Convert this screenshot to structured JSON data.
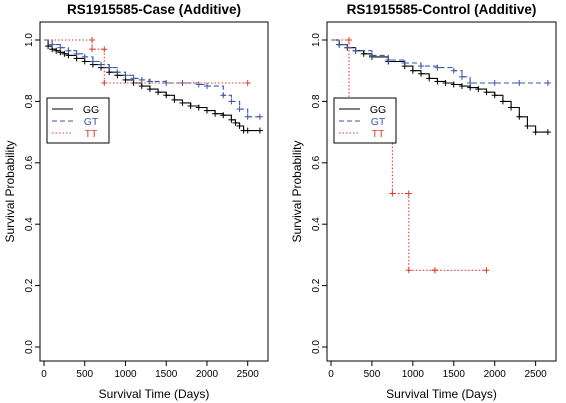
{
  "chart_data": [
    {
      "type": "line",
      "title": "RS1915585-Case (Additive)",
      "xlabel": "Survival Time (Days)",
      "ylabel": "Survival Probability",
      "xlim": [
        0,
        2700
      ],
      "ylim": [
        0,
        1.0
      ],
      "x_ticks": [
        "0",
        "500",
        "1000",
        "1500",
        "2000",
        "2500"
      ],
      "y_ticks": [
        "0.0",
        "0.2",
        "0.4",
        "0.6",
        "0.8",
        "1.0"
      ],
      "legend_position": "middle-left",
      "series": [
        {
          "name": "GG",
          "color": "#000000",
          "dash": "solid",
          "x": [
            0,
            50,
            100,
            150,
            200,
            250,
            300,
            400,
            500,
            600,
            700,
            800,
            900,
            1000,
            1100,
            1200,
            1300,
            1400,
            1500,
            1600,
            1700,
            1800,
            1900,
            2000,
            2100,
            2200,
            2300,
            2350,
            2400,
            2450,
            2500,
            2650
          ],
          "y": [
            1.0,
            0.98,
            0.97,
            0.965,
            0.96,
            0.955,
            0.95,
            0.94,
            0.93,
            0.92,
            0.91,
            0.895,
            0.885,
            0.87,
            0.86,
            0.85,
            0.84,
            0.83,
            0.82,
            0.805,
            0.795,
            0.785,
            0.78,
            0.77,
            0.76,
            0.755,
            0.74,
            0.73,
            0.72,
            0.705,
            0.705,
            0.705
          ]
        },
        {
          "name": "GT",
          "color": "#3b57a8",
          "dash": "dashed",
          "x": [
            0,
            100,
            200,
            300,
            400,
            500,
            600,
            700,
            800,
            900,
            1000,
            1100,
            1200,
            1300,
            1500,
            1700,
            1900,
            2000,
            2200,
            2300,
            2400,
            2500,
            2650
          ],
          "y": [
            1.0,
            0.985,
            0.975,
            0.965,
            0.955,
            0.945,
            0.93,
            0.92,
            0.91,
            0.895,
            0.885,
            0.875,
            0.87,
            0.865,
            0.86,
            0.86,
            0.855,
            0.85,
            0.82,
            0.8,
            0.775,
            0.75,
            0.75
          ]
        },
        {
          "name": "TT",
          "color": "#e23b2e",
          "dash": "dotted",
          "x": [
            0,
            590,
            590,
            740,
            740,
            2500
          ],
          "y": [
            1.0,
            1.0,
            0.97,
            0.97,
            0.86,
            0.86
          ]
        }
      ]
    },
    {
      "type": "line",
      "title": "RS1915585-Control (Additive)",
      "xlabel": "Survival Time (Days)",
      "ylabel": "Survival Probability",
      "xlim": [
        0,
        2700
      ],
      "ylim": [
        0,
        1.0
      ],
      "x_ticks": [
        "0",
        "500",
        "1000",
        "1500",
        "2000",
        "2500"
      ],
      "y_ticks": [
        "0.0",
        "0.2",
        "0.4",
        "0.6",
        "0.8",
        "1.0"
      ],
      "legend_position": "middle-left",
      "series": [
        {
          "name": "GG",
          "color": "#000000",
          "dash": "solid",
          "x": [
            0,
            100,
            200,
            300,
            400,
            500,
            700,
            900,
            1000,
            1100,
            1200,
            1300,
            1400,
            1500,
            1600,
            1700,
            1800,
            1900,
            2000,
            2100,
            2200,
            2300,
            2400,
            2500,
            2650
          ],
          "y": [
            1.0,
            0.985,
            0.975,
            0.965,
            0.955,
            0.945,
            0.93,
            0.915,
            0.9,
            0.89,
            0.875,
            0.865,
            0.86,
            0.855,
            0.85,
            0.845,
            0.84,
            0.83,
            0.82,
            0.8,
            0.78,
            0.75,
            0.72,
            0.7,
            0.7
          ]
        },
        {
          "name": "GT",
          "color": "#3b57a8",
          "dash": "dashed",
          "x": [
            0,
            100,
            200,
            300,
            500,
            700,
            900,
            1100,
            1300,
            1500,
            1600,
            1700,
            2000,
            2300,
            2650
          ],
          "y": [
            1.0,
            0.985,
            0.975,
            0.965,
            0.95,
            0.935,
            0.925,
            0.915,
            0.91,
            0.9,
            0.88,
            0.86,
            0.86,
            0.86,
            0.86
          ]
        },
        {
          "name": "TT",
          "color": "#e23b2e",
          "dash": "dotted",
          "x": [
            0,
            220,
            220,
            750,
            750,
            950,
            950,
            1270,
            1270,
            1900
          ],
          "y": [
            1.0,
            1.0,
            0.75,
            0.75,
            0.5,
            0.5,
            0.25,
            0.25,
            0.25,
            0.25
          ]
        }
      ]
    }
  ]
}
